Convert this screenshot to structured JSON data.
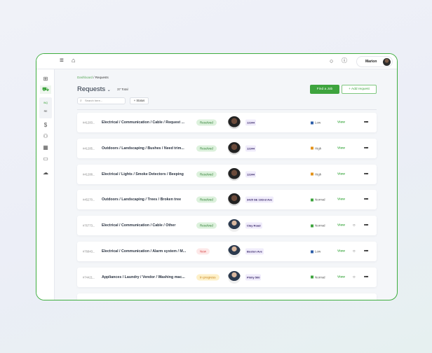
{
  "topbar": {
    "user_name": "Marion"
  },
  "breadcrumb": {
    "parent": "Dashboard",
    "current": "Requests"
  },
  "header": {
    "title": "Requests",
    "total": "37 Total",
    "find_job": "Find a Job",
    "add_request": "+ Add request"
  },
  "filters": {
    "search_placeholder": "Search here...",
    "status_filter": "+ Status"
  },
  "sidebar": {
    "badge1": "INQ",
    "badge2": "RE"
  },
  "colors": {
    "accent": "#3ea43e",
    "low": "#2d5ea8",
    "high": "#e3921a",
    "normal": "#3ea43e"
  },
  "rows": [
    {
      "id": "#41283...",
      "title": "Electrical / Communication / Cable / Request ...",
      "status": "Resolved",
      "location": "12344",
      "priority": "Low",
      "view": "View",
      "chat": false
    },
    {
      "id": "#41285...",
      "title": "Outdoors / Landscaping / Bushes / Need trim...",
      "status": "Resolved",
      "location": "12344",
      "priority": "High",
      "view": "View",
      "chat": false
    },
    {
      "id": "#41288...",
      "title": "Electrical / Lights / Smoke Detectors / Beeping",
      "status": "Resolved",
      "location": "12344",
      "priority": "High",
      "view": "View",
      "chat": false
    },
    {
      "id": "#45270...",
      "title": "Outdoors / Landscaping / Trees / Broken tree",
      "status": "Resolved",
      "location": "3425 SE 192nd Ave",
      "priority": "Normal",
      "view": "View",
      "chat": false
    },
    {
      "id": "#76773...",
      "title": "Electrical / Communication / Cable / Other",
      "status": "Resolved",
      "location": "Clay Road",
      "priority": "Normal",
      "view": "View",
      "chat": true
    },
    {
      "id": "#76843...",
      "title": "Electrical / Communication / Alarm system / M...",
      "status": "New",
      "location": "Boston Ave",
      "priority": "Low",
      "view": "View",
      "chat": true
    },
    {
      "id": "#74421...",
      "title": "Appliances / Laundry / Vendor / Washing mac...",
      "status": "In progress",
      "location": "Philly 500",
      "priority": "Normal",
      "view": "View",
      "chat": true
    }
  ]
}
